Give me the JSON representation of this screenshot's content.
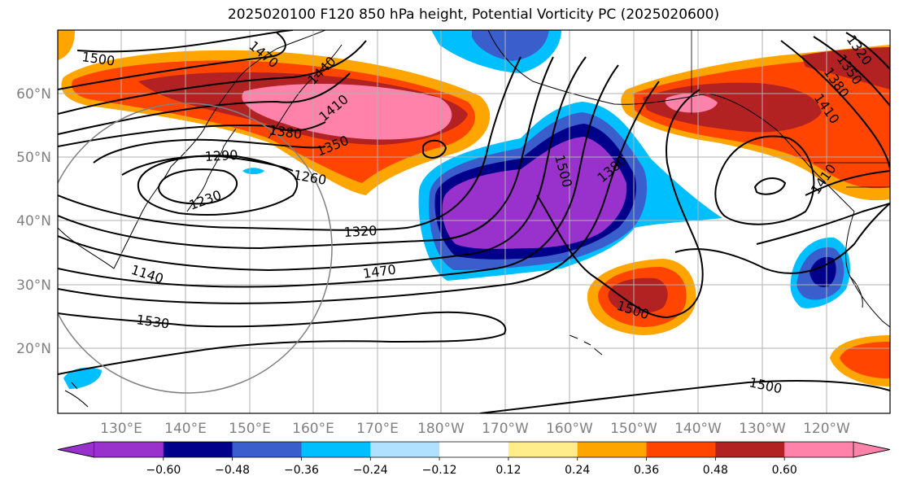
{
  "title": "2025020100 F120 850 hPa height, Potential Vorticity PC (2025020600)",
  "lat_labels": [
    "60°N",
    "50°N",
    "40°N",
    "30°N",
    "20°N"
  ],
  "lon_labels": [
    "130°E",
    "140°E",
    "150°E",
    "160°E",
    "170°E",
    "180°W",
    "170°W",
    "160°W",
    "150°W",
    "140°W",
    "130°W",
    "120°W"
  ],
  "colorbar": {
    "ticks": [
      "−0.60",
      "−0.48",
      "−0.36",
      "−0.24",
      "−0.12",
      "0.12",
      "0.24",
      "0.36",
      "0.48",
      "0.60"
    ],
    "colors": [
      "#9932cc",
      "#00008b",
      "#3a5fcd",
      "#00bfff",
      "#b0e2ff",
      "#ffffff",
      "#ffec8b",
      "#ffa500",
      "#ff4500",
      "#b22222",
      "#ff82ab",
      "#ff82ab"
    ]
  },
  "contour_labels": [
    "1500",
    "1470",
    "1440",
    "1410",
    "1380",
    "1350",
    "1290",
    "1260",
    "1230",
    "1320",
    "1470",
    "1140",
    "1530",
    "1500",
    "1500",
    "1380",
    "1410",
    "1410",
    "1320",
    "1350",
    "1380",
    "1500"
  ]
}
